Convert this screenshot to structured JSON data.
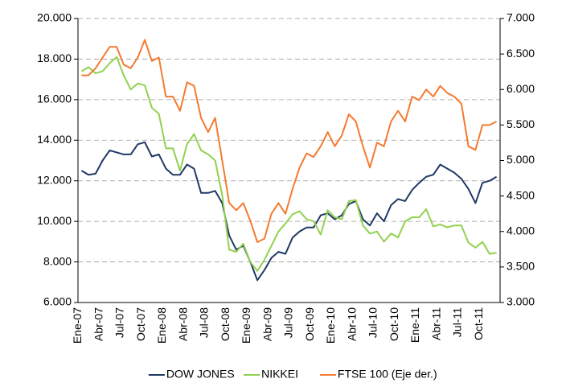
{
  "chart_data": {
    "type": "line",
    "categories": [
      "Ene-07",
      null,
      null,
      "Abr-07",
      null,
      null,
      "Jul-07",
      null,
      null,
      "Oct-07",
      null,
      null,
      "Ene-08",
      null,
      null,
      "Abr-08",
      null,
      null,
      "Jul-08",
      null,
      null,
      "Oct-08",
      null,
      null,
      "Ene-09",
      null,
      null,
      "Abr-09",
      null,
      null,
      "Jul-09",
      null,
      null,
      "Oct-09",
      null,
      null,
      "Ene-10",
      null,
      null,
      "Abr-10",
      null,
      null,
      "Jul-10",
      null,
      null,
      "Oct-10",
      null,
      null,
      "Ene-11",
      null,
      null,
      "Abr-11",
      null,
      null,
      "Jul-11",
      null,
      null,
      "Oct-11",
      null,
      null
    ],
    "series": [
      {
        "name": "DOW JONES",
        "color": "#1f3864",
        "axis": "y",
        "values": [
          12500,
          12300,
          12350,
          13000,
          13500,
          13400,
          13300,
          13300,
          13800,
          13900,
          13200,
          13300,
          12600,
          12300,
          12300,
          12800,
          12600,
          11400,
          11400,
          11500,
          10900,
          9300,
          8600,
          8800,
          8000,
          7100,
          7600,
          8200,
          8500,
          8400,
          9200,
          9500,
          9700,
          9700,
          10300,
          10400,
          10100,
          10300,
          10850,
          11000,
          10100,
          9800,
          10400,
          10000,
          10800,
          11100,
          11000,
          11550,
          11900,
          12200,
          12300,
          12800,
          12600,
          12400,
          12100,
          11600,
          10900,
          11900,
          12000,
          12200
        ]
      },
      {
        "name": "NIKKEI",
        "color": "#92d050",
        "axis": "y",
        "values": [
          17400,
          17600,
          17300,
          17400,
          17800,
          18100,
          17200,
          16500,
          16800,
          16700,
          15600,
          15300,
          13600,
          13600,
          12500,
          13800,
          14300,
          13500,
          13300,
          13000,
          11300,
          8600,
          8500,
          8900,
          7990,
          7560,
          8100,
          8800,
          9500,
          9900,
          10350,
          10500,
          10100,
          10000,
          9350,
          10550,
          10200,
          10100,
          11000,
          11050,
          9800,
          9400,
          9500,
          9000,
          9400,
          9200,
          10000,
          10200,
          10200,
          10600,
          9750,
          9850,
          9700,
          9800,
          9800,
          8950,
          8700,
          8990,
          8400,
          8450
        ]
      },
      {
        "name": "FTSE 100 (Eje der.)",
        "color": "#f47a30",
        "axis": "y2",
        "values": [
          6200,
          6200,
          6300,
          6450,
          6600,
          6600,
          6350,
          6300,
          6450,
          6700,
          6400,
          6450,
          5900,
          5900,
          5700,
          6100,
          6050,
          5600,
          5400,
          5600,
          5000,
          4400,
          4300,
          4400,
          4150,
          3850,
          3900,
          4250,
          4400,
          4250,
          4600,
          4900,
          5100,
          5050,
          5200,
          5400,
          5200,
          5350,
          5650,
          5550,
          5200,
          4900,
          5250,
          5200,
          5550,
          5700,
          5550,
          5900,
          5850,
          6000,
          5900,
          6050,
          5950,
          5900,
          5800,
          5200,
          5150,
          5500,
          5500,
          5550
        ]
      }
    ],
    "ylim": [
      6000,
      20000
    ],
    "yticks": [
      {
        "value": 6000,
        "label": "6.000"
      },
      {
        "value": 8000,
        "label": "8.000"
      },
      {
        "value": 10000,
        "label": "10.000"
      },
      {
        "value": 12000,
        "label": "12.000"
      },
      {
        "value": 14000,
        "label": "14.000"
      },
      {
        "value": 16000,
        "label": "16.000"
      },
      {
        "value": 18000,
        "label": "18.000"
      },
      {
        "value": 20000,
        "label": "20.000"
      }
    ],
    "y2lim": [
      3000,
      7000
    ],
    "y2ticks": [
      {
        "value": 3000,
        "label": "3.000"
      },
      {
        "value": 3500,
        "label": "3.500"
      },
      {
        "value": 4000,
        "label": "4.000"
      },
      {
        "value": 4500,
        "label": "4.500"
      },
      {
        "value": 5000,
        "label": "5.000"
      },
      {
        "value": 5500,
        "label": "5.500"
      },
      {
        "value": 6000,
        "label": "6.000"
      },
      {
        "value": 6500,
        "label": "6.500"
      },
      {
        "value": 7000,
        "label": "7.000"
      }
    ],
    "grid": true,
    "legend": "bottom"
  }
}
